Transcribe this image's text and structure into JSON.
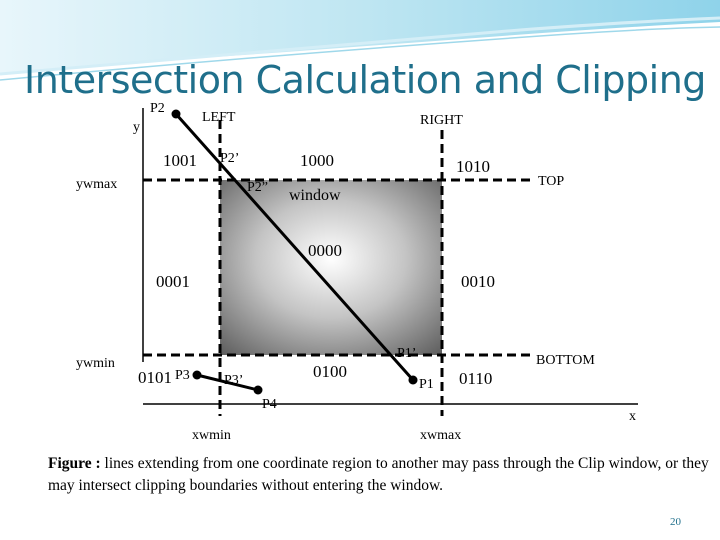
{
  "title": "Intersection Calculation and Clipping",
  "diagram": {
    "axis_labels": {
      "y": "y",
      "x": "x"
    },
    "boundary_labels": {
      "left": "LEFT",
      "right": "RIGHT",
      "top": "TOP",
      "bottom": "BOTTOM"
    },
    "ymax_label": "ywmax",
    "ymin_label": "ywmin",
    "xmin_label": "xwmin",
    "xmax_label": "xwmax",
    "window_label": "window",
    "region_codes": {
      "top_left": "1001",
      "top": "1000",
      "top_right": "1010",
      "inside": "0000",
      "left": "0001",
      "right": "0010",
      "bottom_left": "0101",
      "bottom": "0100",
      "bottom_right": "0110"
    },
    "points": {
      "p1": "P1",
      "p1_prime": "P1’",
      "p2": "P2",
      "p2_prime": "P2’",
      "p2_double_prime": "P2”",
      "p3": "P3",
      "p3_prime": "P3’",
      "p4": "P4"
    },
    "colors": {
      "window_center": "#ffffff",
      "window_edge": "#5a5a5a",
      "lines": "#000000"
    }
  },
  "caption": {
    "prefix": "Figure :",
    "text": "lines extending from one coordinate region to another may pass through the Clip window, or they may intersect clipping boundaries without entering the window."
  },
  "page_number": "20"
}
